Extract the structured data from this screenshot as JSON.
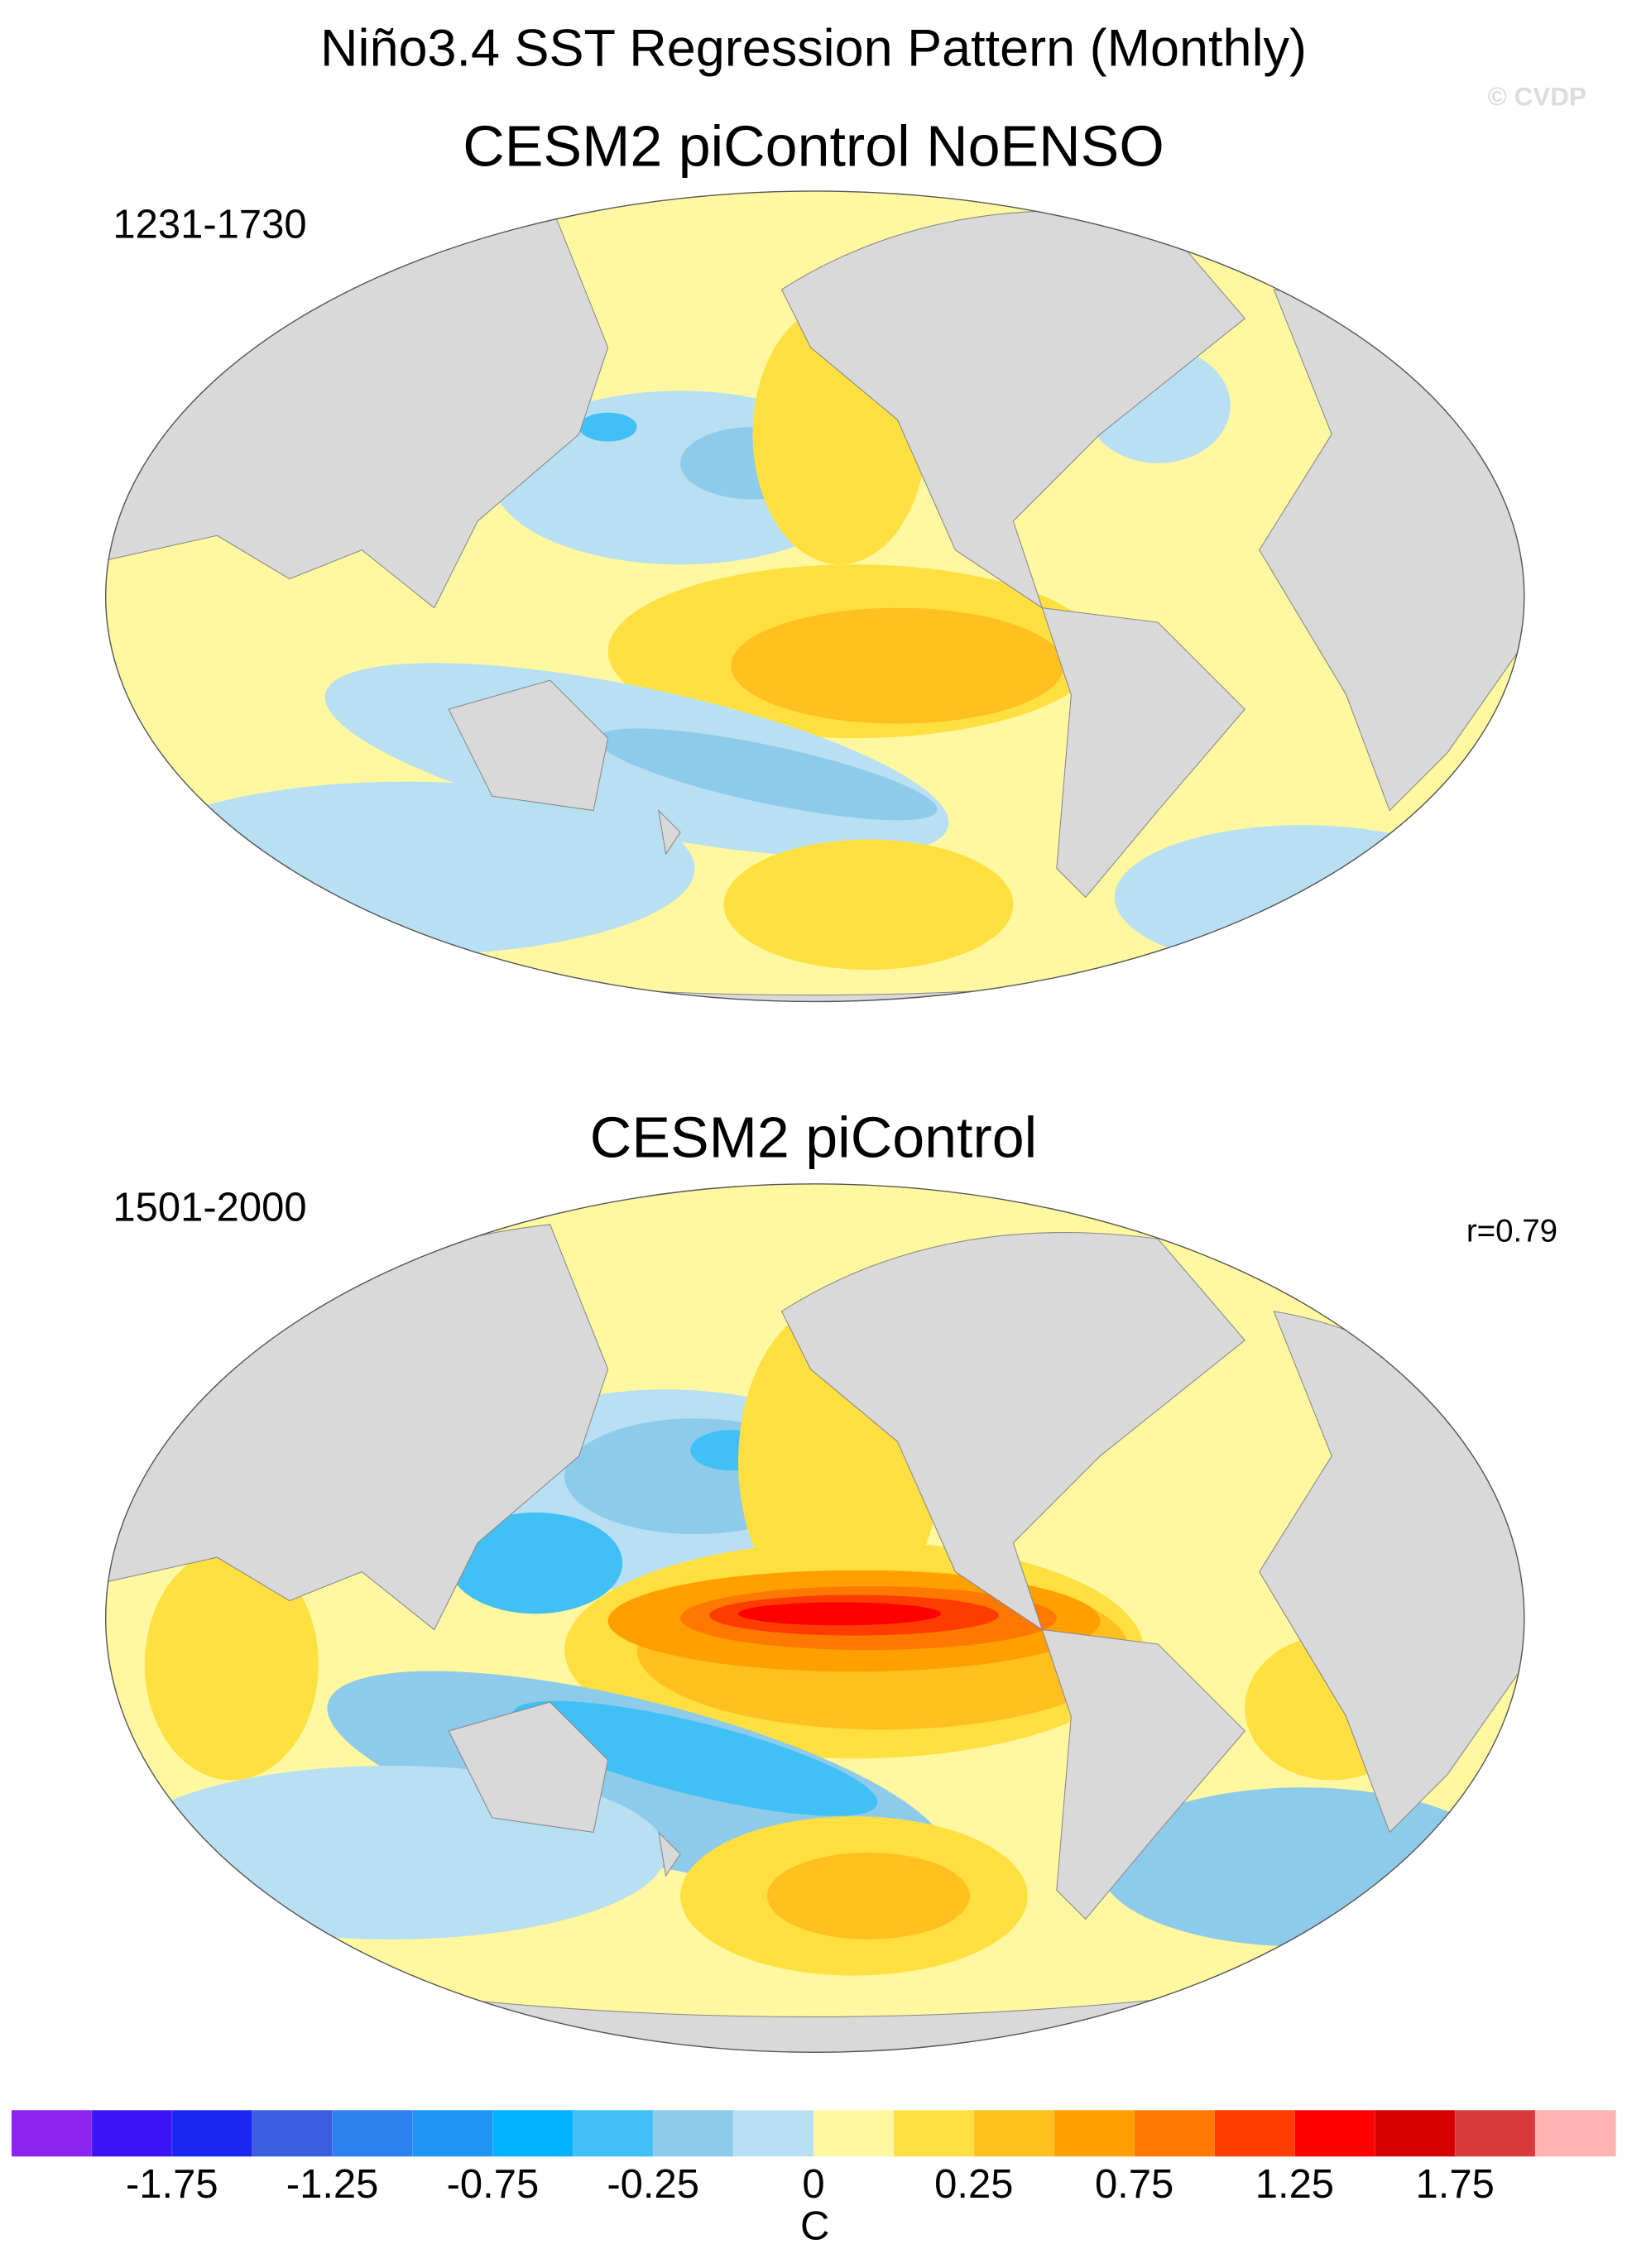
{
  "title": "Niño3.4 SST Regression Pattern (Monthly)",
  "copyright": "© CVDP",
  "panels": [
    {
      "title": "CESM2 piControl NoENSO",
      "period": "1231-1730"
    },
    {
      "title": "CESM2 piControl",
      "period": "1501-2000",
      "correlation": "r=0.79"
    }
  ],
  "colorbar": {
    "unit": "C",
    "colors": [
      "#8b22ee",
      "#3a14f5",
      "#1a26f2",
      "#3a5ee0",
      "#2e7ff0",
      "#1e95f5",
      "#00b2ff",
      "#40c0f5",
      "#8ecbeb",
      "#b8e0f2",
      "#fff8a0",
      "#ffe040",
      "#ffc020",
      "#ffa000",
      "#ff7800",
      "#ff3c00",
      "#ff0000",
      "#d40000",
      "#d93a3a",
      "#ffb4b4"
    ],
    "levels": [
      -2,
      -1.75,
      -1.5,
      -1.25,
      -1,
      -0.75,
      -0.5,
      -0.25,
      -0.1,
      0,
      0.1,
      0.25,
      0.5,
      0.75,
      1,
      1.25,
      1.5,
      1.75,
      2
    ],
    "ticks": [
      -1.75,
      -1.25,
      -0.75,
      -0.25,
      0,
      0.25,
      0.75,
      1.25,
      1.75
    ]
  }
}
